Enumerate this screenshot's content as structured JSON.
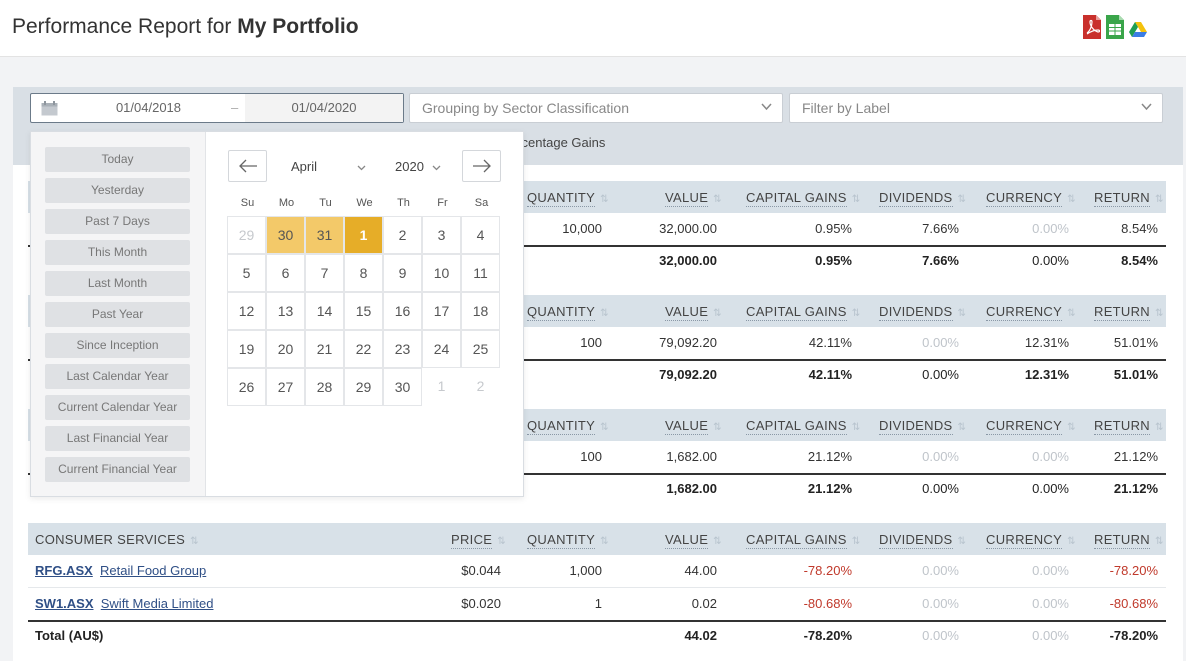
{
  "header": {
    "title_prefix": "Performance Report for ",
    "title_bold": "My Portfolio",
    "export_icons": [
      "pdf-export-icon",
      "spreadsheet-export-icon",
      "google-drive-icon"
    ]
  },
  "filters": {
    "date_from": "01/04/2018",
    "date_dash": "–",
    "date_to": "01/04/2020",
    "grouping": "Grouping by Sector Classification",
    "label_placeholder": "Filter by Label",
    "percentage_label": "ercentage Gains"
  },
  "picker": {
    "presets": [
      "Today",
      "Yesterday",
      "Past 7 Days",
      "This Month",
      "Last Month",
      "Past Year",
      "Since Inception",
      "Last Calendar Year",
      "Current Calendar Year",
      "Last Financial Year",
      "Current Financial Year"
    ],
    "month": "April",
    "year": "2020",
    "weekdays": [
      "Su",
      "Mo",
      "Tu",
      "We",
      "Th",
      "Fr",
      "Sa"
    ],
    "weeks": [
      [
        "29",
        "30",
        "31",
        "1",
        "2",
        "3",
        "4"
      ],
      [
        "5",
        "6",
        "7",
        "8",
        "9",
        "10",
        "11"
      ],
      [
        "12",
        "13",
        "14",
        "15",
        "16",
        "17",
        "18"
      ],
      [
        "19",
        "20",
        "21",
        "22",
        "23",
        "24",
        "25"
      ],
      [
        "26",
        "27",
        "28",
        "29",
        "30",
        "1",
        "2"
      ]
    ]
  },
  "columns": {
    "price": "PRICE",
    "quantity": "QUANTITY",
    "value": "VALUE",
    "capital_gains": "CAPITAL GAINS",
    "dividends": "DIVIDENDS",
    "currency": "CURRENCY",
    "return": "RETURN",
    "sort_glyph": "⇅"
  },
  "groups": [
    {
      "row": {
        "quantity": "10,000",
        "value": "32,000.00",
        "capital_gains": "0.95%",
        "dividends": "7.66%",
        "currency": "0.00%",
        "return": "8.54%"
      },
      "total": {
        "value": "32,000.00",
        "capital_gains": "0.95%",
        "dividends": "7.66%",
        "currency": "0.00%",
        "return": "8.54%"
      }
    },
    {
      "row": {
        "quantity": "100",
        "value": "79,092.20",
        "capital_gains": "42.11%",
        "dividends": "0.00%",
        "currency": "12.31%",
        "return": "51.01%"
      },
      "total": {
        "value": "79,092.20",
        "capital_gains": "42.11%",
        "dividends": "0.00%",
        "currency": "12.31%",
        "return": "51.01%"
      }
    },
    {
      "row": {
        "quantity": "100",
        "value": "1,682.00",
        "capital_gains": "21.12%",
        "dividends": "0.00%",
        "currency": "0.00%",
        "return": "21.12%"
      },
      "total": {
        "value": "1,682.00",
        "capital_gains": "21.12%",
        "dividends": "0.00%",
        "currency": "0.00%",
        "return": "21.12%"
      }
    }
  ],
  "consumer": {
    "sector": "CONSUMER SERVICES",
    "rows": [
      {
        "code": "RFG.ASX",
        "name": "Retail Food Group",
        "price": "$0.044",
        "quantity": "1,000",
        "value": "44.00",
        "capital_gains": "-78.20%",
        "dividends": "0.00%",
        "currency": "0.00%",
        "return": "-78.20%"
      },
      {
        "code": "SW1.ASX",
        "name": "Swift Media Limited",
        "price": "$0.020",
        "quantity": "1",
        "value": "0.02",
        "capital_gains": "-80.68%",
        "dividends": "0.00%",
        "currency": "0.00%",
        "return": "-80.68%"
      }
    ],
    "total": {
      "label": "Total (AU$)",
      "value": "44.02",
      "capital_gains": "-78.20%",
      "dividends": "0.00%",
      "currency": "0.00%",
      "return": "-78.20%"
    }
  }
}
